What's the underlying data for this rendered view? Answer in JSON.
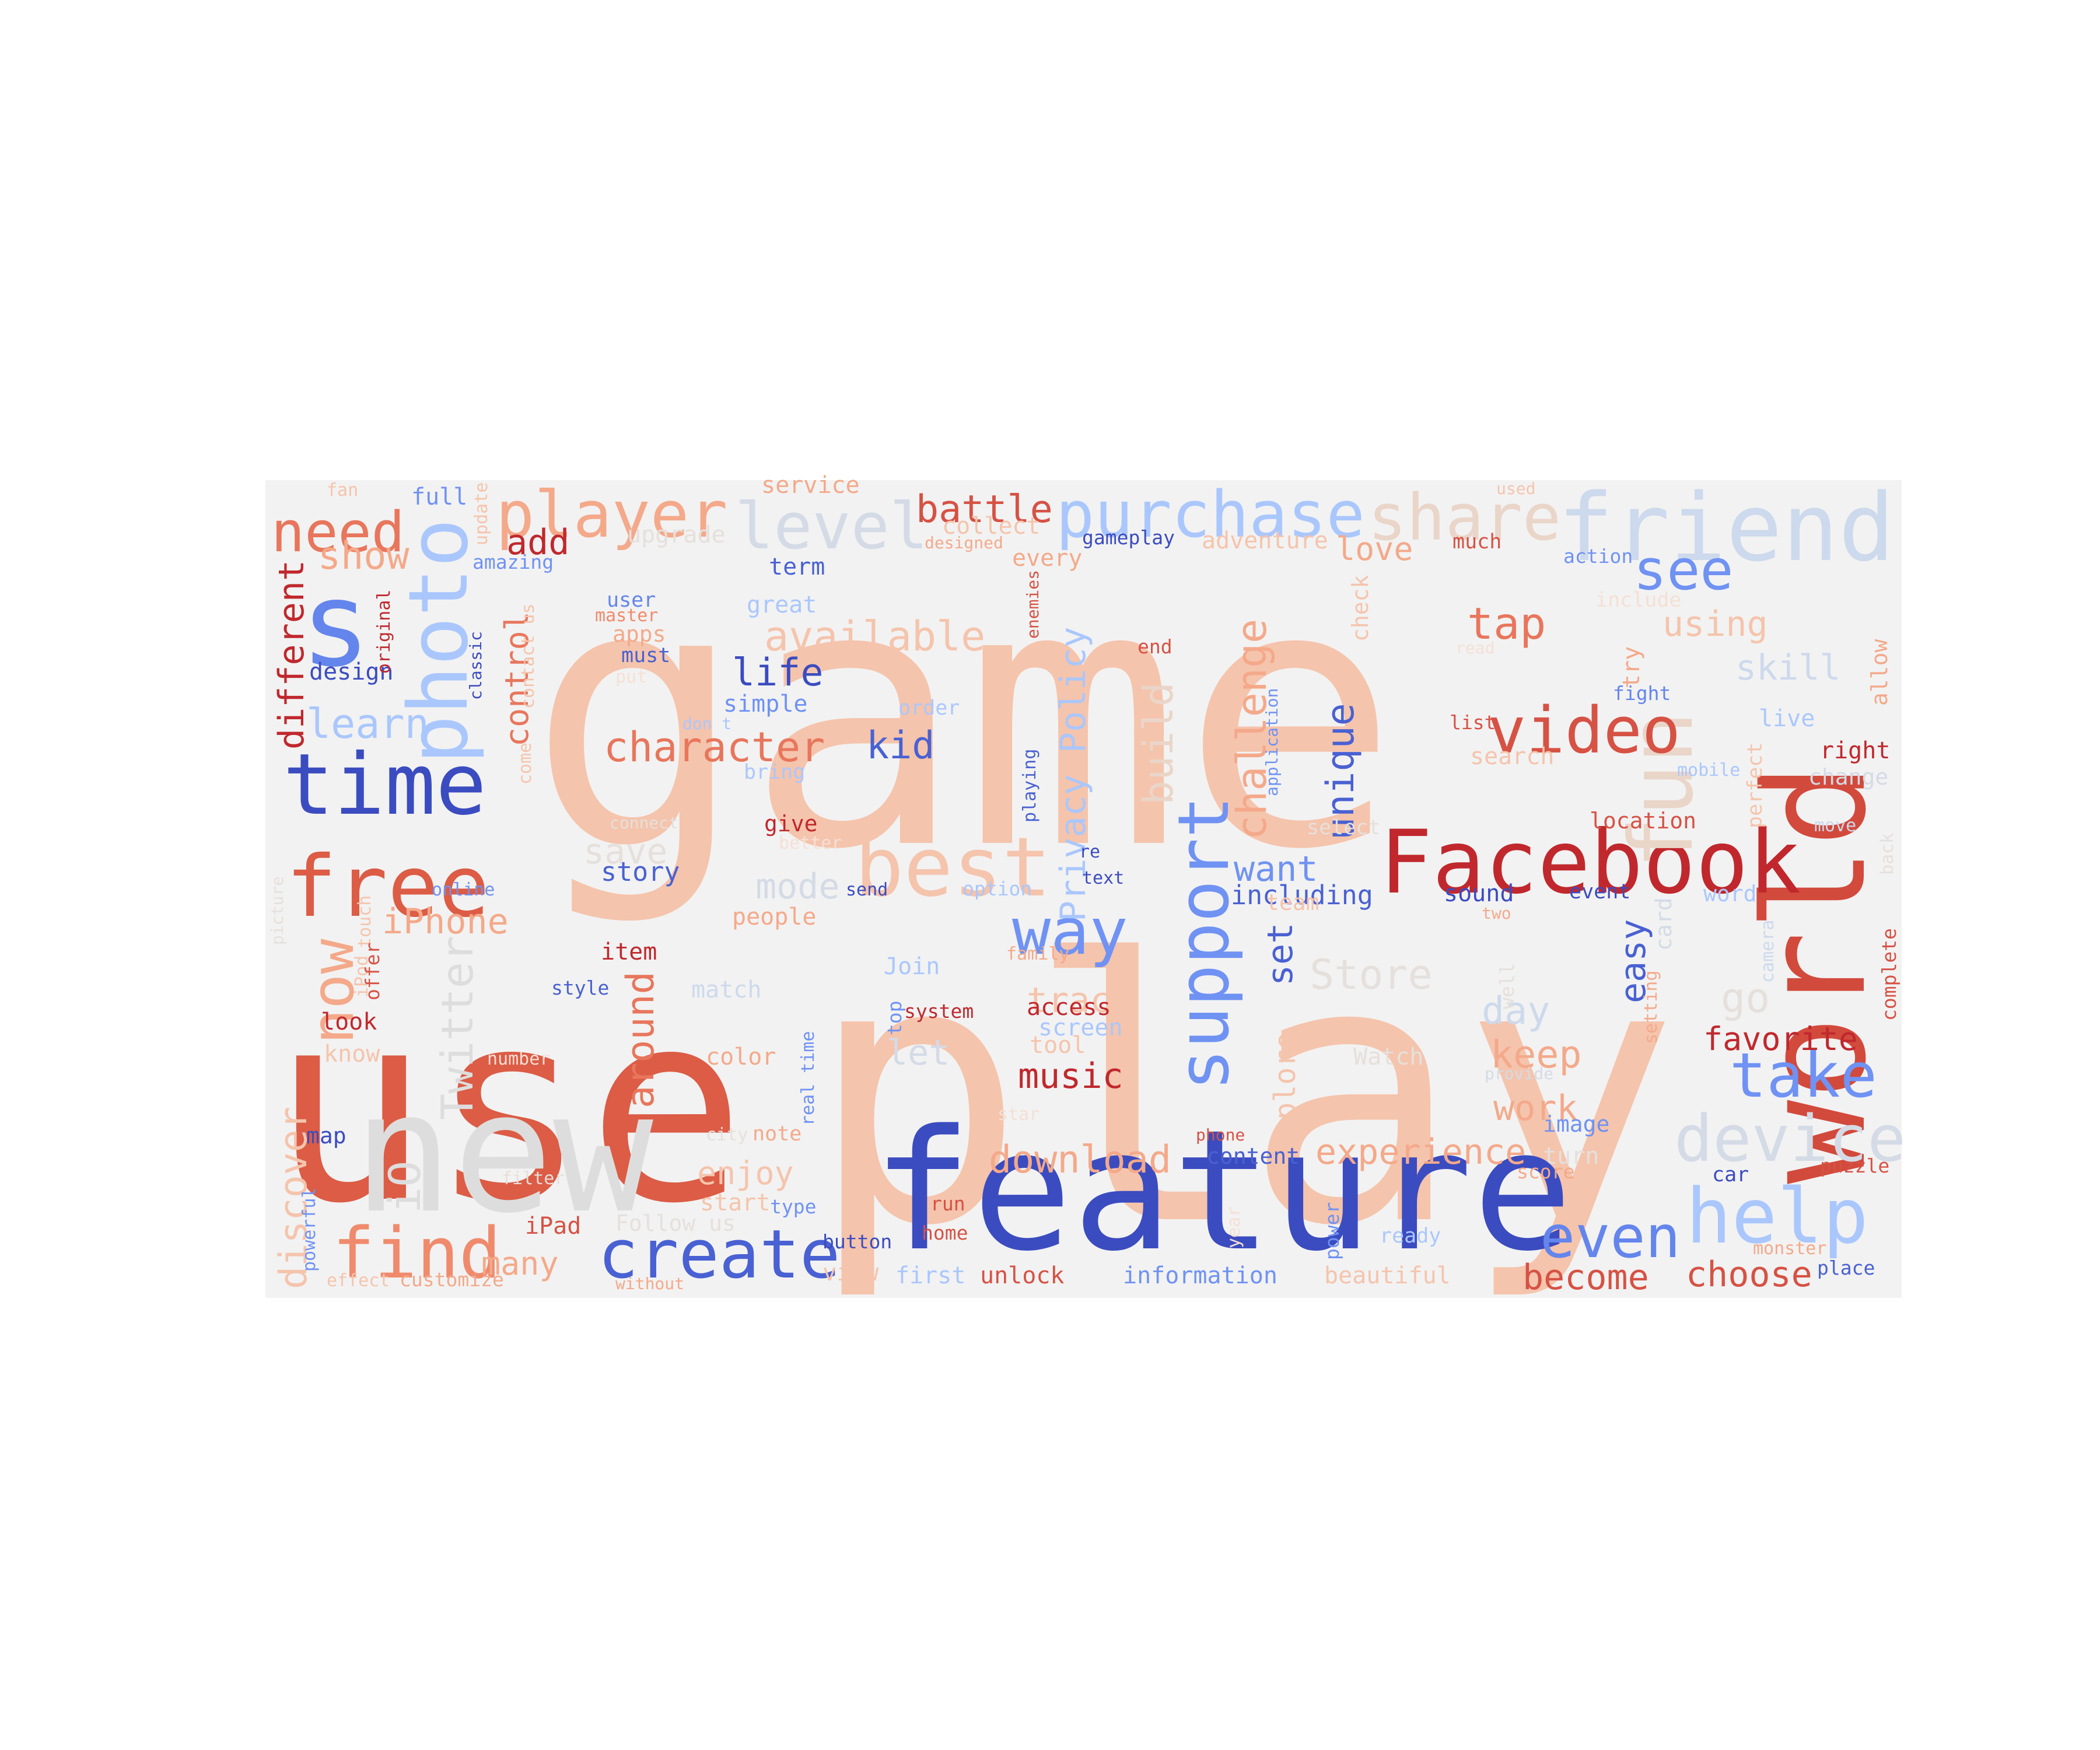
{
  "colors": {
    "background": "#f2f2f2",
    "palette": "coolwarm",
    "blue_dark": "#3b4cc0",
    "blue_mid": "#6f92f3",
    "blue_light": "#aac7fd",
    "gray": "#dddddd",
    "salmon_light": "#f5c4ac",
    "salmon": "#f08a6c",
    "red": "#d65244",
    "red_dark": "#b40426"
  },
  "words": [
    {
      "text": "game",
      "color": "#f5c4ac"
    },
    {
      "text": "play",
      "color": "#f5c4ac"
    },
    {
      "text": "use",
      "color": "#dc5c45"
    },
    {
      "text": "new",
      "color": "#dddddd"
    },
    {
      "text": "feature",
      "color": "#3b4cc0"
    },
    {
      "text": "world",
      "color": "#d24a3c"
    },
    {
      "text": "Facebook",
      "color": "#c0282d"
    },
    {
      "text": "friend",
      "color": "#cdd9ec"
    },
    {
      "text": "s",
      "color": "#6485ec"
    },
    {
      "text": "time",
      "color": "#3b4cc0"
    },
    {
      "text": "free",
      "color": "#dc5c45"
    },
    {
      "text": "photo",
      "color": "#aac7fd"
    },
    {
      "text": "need",
      "color": "#e8765c"
    },
    {
      "text": "player",
      "color": "#f4a98a"
    },
    {
      "text": "level",
      "color": "#d4dbe6"
    },
    {
      "text": "purchase",
      "color": "#aac7fd"
    },
    {
      "text": "share",
      "color": "#ead5c9"
    },
    {
      "text": "battle",
      "color": "#d65244"
    },
    {
      "text": "best",
      "color": "#f5c4ac"
    },
    {
      "text": "fun",
      "color": "#ead5c9"
    },
    {
      "text": "video",
      "color": "#d65244"
    },
    {
      "text": "see",
      "color": "#6f92f3"
    },
    {
      "text": "tap",
      "color": "#e8765c"
    },
    {
      "text": "help",
      "color": "#aac7fd"
    },
    {
      "text": "device",
      "color": "#d4dbe6"
    },
    {
      "text": "take",
      "color": "#6f92f3"
    },
    {
      "text": "even",
      "color": "#6485ec"
    },
    {
      "text": "create",
      "color": "#4961d2"
    },
    {
      "text": "find",
      "color": "#f08a6c"
    },
    {
      "text": "support",
      "color": "#6f92f3"
    },
    {
      "text": "way",
      "color": "#6f92f3"
    },
    {
      "text": "challenge",
      "color": "#f4a98a"
    },
    {
      "text": "character",
      "color": "#e8765c"
    },
    {
      "text": "available",
      "color": "#f5c4ac"
    },
    {
      "text": "life",
      "color": "#3b4cc0"
    },
    {
      "text": "kid",
      "color": "#4961d2"
    },
    {
      "text": "unique",
      "color": "#4961d2"
    },
    {
      "text": "Privacy Policy",
      "color": "#aac7fd"
    },
    {
      "text": "build",
      "color": "#ead5c9"
    },
    {
      "text": "now",
      "color": "#f4a98a"
    },
    {
      "text": "Twitter",
      "color": "#dddddd"
    },
    {
      "text": "iO",
      "color": "#dddddd"
    },
    {
      "text": "around",
      "color": "#e8765c"
    },
    {
      "text": "control",
      "color": "#e8765c"
    },
    {
      "text": "different",
      "color": "#c0282d"
    },
    {
      "text": "discover",
      "color": "#f5c4ac"
    },
    {
      "text": "learn",
      "color": "#aac7fd"
    },
    {
      "text": "show",
      "color": "#f4a98a"
    },
    {
      "text": "add",
      "color": "#c0282d"
    },
    {
      "text": "iPhone",
      "color": "#f4a98a"
    },
    {
      "text": "save",
      "color": "#e5e0dc"
    },
    {
      "text": "mode",
      "color": "#d4dbe6"
    },
    {
      "text": "story",
      "color": "#4961d2"
    },
    {
      "text": "want",
      "color": "#6f92f3"
    },
    {
      "text": "including",
      "color": "#4961d2"
    },
    {
      "text": "set",
      "color": "#4961d2"
    },
    {
      "text": "Store",
      "color": "#e5e0dc"
    },
    {
      "text": "explore",
      "color": "#f5c4ac"
    },
    {
      "text": "track",
      "color": "#f5c4ac"
    },
    {
      "text": "music",
      "color": "#c0282d"
    },
    {
      "text": "download",
      "color": "#f4a98a"
    },
    {
      "text": "experience",
      "color": "#f4a98a"
    },
    {
      "text": "keep",
      "color": "#f4a98a"
    },
    {
      "text": "work",
      "color": "#f4a98a"
    },
    {
      "text": "day",
      "color": "#cdd9ec"
    },
    {
      "text": "go",
      "color": "#e5e0dc"
    },
    {
      "text": "easy",
      "color": "#4961d2"
    },
    {
      "text": "favorite",
      "color": "#c0282d"
    },
    {
      "text": "become",
      "color": "#d65244"
    },
    {
      "text": "choose",
      "color": "#d65244"
    },
    {
      "text": "using",
      "color": "#f5c4ac"
    },
    {
      "text": "skill",
      "color": "#cdd9ec"
    },
    {
      "text": "love",
      "color": "#f4a98a"
    },
    {
      "text": "enjoy",
      "color": "#f5c4ac"
    },
    {
      "text": "many",
      "color": "#f4a98a"
    },
    {
      "text": "let",
      "color": "#d4dbe6"
    },
    {
      "text": "Join",
      "color": "#aac7fd"
    },
    {
      "text": "item",
      "color": "#c0282d"
    },
    {
      "text": "people",
      "color": "#f4a98a"
    },
    {
      "text": "color",
      "color": "#f4a98a"
    },
    {
      "text": "access",
      "color": "#c0282d"
    },
    {
      "text": "screen",
      "color": "#aac7fd"
    },
    {
      "text": "tool",
      "color": "#f5c4ac"
    },
    {
      "text": "look",
      "color": "#c0282d"
    },
    {
      "text": "know",
      "color": "#f5c4ac"
    },
    {
      "text": "iPad",
      "color": "#d65244"
    },
    {
      "text": "term",
      "color": "#4961d2"
    },
    {
      "text": "great",
      "color": "#aac7fd"
    },
    {
      "text": "design",
      "color": "#3b4cc0"
    },
    {
      "text": "simple",
      "color": "#6f92f3"
    },
    {
      "text": "must",
      "color": "#4961d2"
    },
    {
      "text": "apps",
      "color": "#f4a98a"
    },
    {
      "text": "master",
      "color": "#f08a6c"
    },
    {
      "text": "user",
      "color": "#6485ec"
    },
    {
      "text": "collect",
      "color": "#f5c4ac"
    },
    {
      "text": "gameplay",
      "color": "#3b4cc0"
    },
    {
      "text": "adventure",
      "color": "#f5c4ac"
    },
    {
      "text": "much",
      "color": "#d65244"
    },
    {
      "text": "action",
      "color": "#6f92f3"
    },
    {
      "text": "include",
      "color": "#f5e0d6"
    },
    {
      "text": "every",
      "color": "#f4a98a"
    },
    {
      "text": "designed",
      "color": "#f4a98a"
    },
    {
      "text": "service",
      "color": "#f4a98a"
    },
    {
      "text": "fan",
      "color": "#f5c4ac"
    },
    {
      "text": "full",
      "color": "#6f92f3"
    },
    {
      "text": "upgrade",
      "color": "#e5e0dc"
    },
    {
      "text": "update",
      "color": "#f5c4ac"
    },
    {
      "text": "used",
      "color": "#f5c4ac"
    },
    {
      "text": "amazing",
      "color": "#6f92f3"
    },
    {
      "text": "original",
      "color": "#c0282d"
    },
    {
      "text": "classic",
      "color": "#3b4cc0"
    },
    {
      "text": "contact us",
      "color": "#f5c4ac"
    },
    {
      "text": "come",
      "color": "#f5c4ac"
    },
    {
      "text": "put",
      "color": "#f5e0d6"
    },
    {
      "text": "read",
      "color": "#f5e0d6"
    },
    {
      "text": "end",
      "color": "#d65244"
    },
    {
      "text": "enemies",
      "color": "#d65244"
    },
    {
      "text": "check",
      "color": "#f5c4ac"
    },
    {
      "text": "try",
      "color": "#f4a98a"
    },
    {
      "text": "fight",
      "color": "#6485ec"
    },
    {
      "text": "allow",
      "color": "#f4a98a"
    },
    {
      "text": "list",
      "color": "#d65244"
    },
    {
      "text": "live",
      "color": "#aac7fd"
    },
    {
      "text": "right",
      "color": "#c0282d"
    },
    {
      "text": "search",
      "color": "#f5c4ac"
    },
    {
      "text": "mobile",
      "color": "#aac7fd"
    },
    {
      "text": "perfect",
      "color": "#f5c4ac"
    },
    {
      "text": "change",
      "color": "#d4dbe6"
    },
    {
      "text": "order",
      "color": "#aac7fd"
    },
    {
      "text": "bring",
      "color": "#aac7fd"
    },
    {
      "text": "don t",
      "color": "#aac7fd"
    },
    {
      "text": "playing",
      "color": "#4961d2"
    },
    {
      "text": "application",
      "color": "#6f92f3"
    },
    {
      "text": "location",
      "color": "#d65244"
    },
    {
      "text": "select",
      "color": "#e5e0dc"
    },
    {
      "text": "move",
      "color": "#cdd9ec"
    },
    {
      "text": "back",
      "color": "#e5e0dc"
    },
    {
      "text": "connect",
      "color": "#e5e0dc"
    },
    {
      "text": "give",
      "color": "#c0282d"
    },
    {
      "text": "better",
      "color": "#f5e0d6"
    },
    {
      "text": "re",
      "color": "#3b4cc0"
    },
    {
      "text": "text",
      "color": "#3b4cc0"
    },
    {
      "text": "online",
      "color": "#6f92f3"
    },
    {
      "text": "send",
      "color": "#3b4cc0"
    },
    {
      "text": "option",
      "color": "#aac7fd"
    },
    {
      "text": "team",
      "color": "#f5c4ac"
    },
    {
      "text": "sound",
      "color": "#3b4cc0"
    },
    {
      "text": "event",
      "color": "#3b4cc0"
    },
    {
      "text": "word",
      "color": "#aac7fd"
    },
    {
      "text": "card",
      "color": "#d4dbe6"
    },
    {
      "text": "two",
      "color": "#f4a98a"
    },
    {
      "text": "camera",
      "color": "#cdd9ec"
    },
    {
      "text": "complete",
      "color": "#d65244"
    },
    {
      "text": "picture",
      "color": "#e5e0dc"
    },
    {
      "text": "touch",
      "color": "#f5c4ac"
    },
    {
      "text": "iPod",
      "color": "#f5c4ac"
    },
    {
      "text": "offer",
      "color": "#d65244"
    },
    {
      "text": "family",
      "color": "#f4a98a"
    },
    {
      "text": "style",
      "color": "#4961d2"
    },
    {
      "text": "match",
      "color": "#cdd9ec"
    },
    {
      "text": "top",
      "color": "#6f92f3"
    },
    {
      "text": "system",
      "color": "#c0282d"
    },
    {
      "text": "well",
      "color": "#e5e0dc"
    },
    {
      "text": "setting",
      "color": "#f4a98a"
    },
    {
      "text": "real time",
      "color": "#6f92f3"
    },
    {
      "text": "number",
      "color": "#f5e0d6"
    },
    {
      "text": "Watch",
      "color": "#e5e0dc"
    },
    {
      "text": "provide",
      "color": "#d4dbe6"
    },
    {
      "text": "star",
      "color": "#f5e0d6"
    },
    {
      "text": "image",
      "color": "#6f92f3"
    },
    {
      "text": "map",
      "color": "#3b4cc0"
    },
    {
      "text": "note",
      "color": "#f4a98a"
    },
    {
      "text": "city",
      "color": "#e5e0dc"
    },
    {
      "text": "phone",
      "color": "#d65244"
    },
    {
      "text": "content",
      "color": "#4961d2"
    },
    {
      "text": "turn",
      "color": "#e5e0dc"
    },
    {
      "text": "filter",
      "color": "#e5e0dc"
    },
    {
      "text": "score",
      "color": "#f4a98a"
    },
    {
      "text": "car",
      "color": "#3b4cc0"
    },
    {
      "text": "puzzle",
      "color": "#d65244"
    },
    {
      "text": "powerful",
      "color": "#6f92f3"
    },
    {
      "text": "start",
      "color": "#f5c4ac"
    },
    {
      "text": "type",
      "color": "#6f92f3"
    },
    {
      "text": "run",
      "color": "#d65244"
    },
    {
      "text": "Follow us",
      "color": "#e5e0dc"
    },
    {
      "text": "home",
      "color": "#d65244"
    },
    {
      "text": "year",
      "color": "#f5e0d6"
    },
    {
      "text": "power",
      "color": "#6f92f3"
    },
    {
      "text": "ready",
      "color": "#aac7fd"
    },
    {
      "text": "monster",
      "color": "#f4a98a"
    },
    {
      "text": "button",
      "color": "#3b4cc0"
    },
    {
      "text": "view",
      "color": "#f5c4ac"
    },
    {
      "text": "first",
      "color": "#aac7fd"
    },
    {
      "text": "unlock",
      "color": "#d65244"
    },
    {
      "text": "information",
      "color": "#6f92f3"
    },
    {
      "text": "beautiful",
      "color": "#f5c4ac"
    },
    {
      "text": "place",
      "color": "#4961d2"
    },
    {
      "text": "effect",
      "color": "#f5c4ac"
    },
    {
      "text": "customize",
      "color": "#f4a98a"
    },
    {
      "text": "without",
      "color": "#f4a98a"
    }
  ]
}
